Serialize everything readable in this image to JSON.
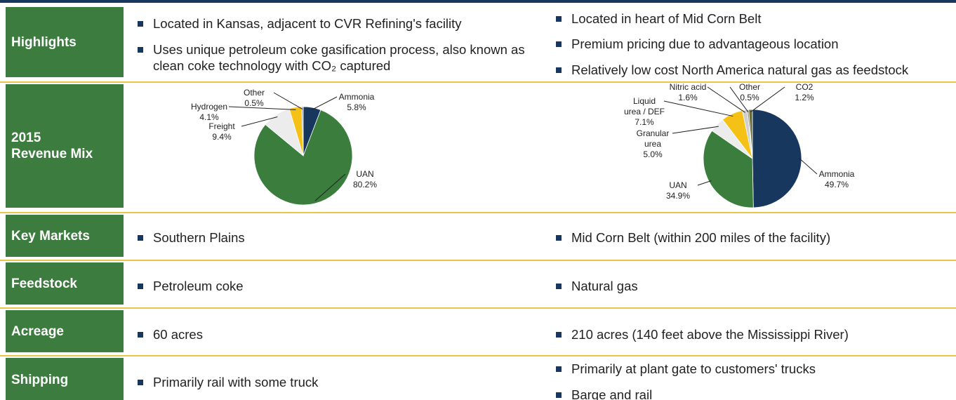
{
  "rows": [
    {
      "label": "Highlights",
      "left": [
        "Located in Kansas, adjacent to CVR Refining's facility",
        "Uses unique petroleum coke gasification process, also known as clean coke technology with CO₂ captured"
      ],
      "right": [
        "Located in heart of Mid Corn Belt",
        "Premium pricing due to advantageous location",
        "Relatively low cost North America natural gas as feedstock"
      ]
    },
    {
      "label": "2015\nRevenue Mix",
      "charts": [
        {
          "type": "pie",
          "categories": [
            "Ammonia",
            "UAN",
            "Freight",
            "Hydrogen",
            "Other"
          ],
          "values": [
            5.8,
            80.2,
            9.4,
            4.1,
            0.5
          ],
          "value_labels": [
            "5.8%",
            "80.2%",
            "9.4%",
            "4.1%",
            "0.5%"
          ],
          "colors": [
            "#17375e",
            "#3a7d3c",
            "#ececec",
            "#f5c116",
            "#9c9c9c"
          ]
        },
        {
          "type": "pie",
          "categories": [
            "Ammonia",
            "UAN",
            "Granular\nurea",
            "Liquid\nurea / DEF",
            "Nitric acid",
            "Other",
            "CO2"
          ],
          "values": [
            49.7,
            34.9,
            5.0,
            7.1,
            1.6,
            0.5,
            1.2
          ],
          "value_labels": [
            "49.7%",
            "34.9%",
            "5.0%",
            "7.1%",
            "1.6%",
            "0.5%",
            "1.2%"
          ],
          "colors": [
            "#17375e",
            "#3a7d3c",
            "#ececec",
            "#f5c116",
            "#cfcfcf",
            "#8c8c6c",
            "#6b6b3a"
          ]
        }
      ]
    },
    {
      "label": "Key Markets",
      "left": [
        "Southern Plains"
      ],
      "right": [
        "Mid Corn Belt (within 200 miles of the facility)"
      ]
    },
    {
      "label": "Feedstock",
      "left": [
        "Petroleum coke"
      ],
      "right": [
        "Natural gas"
      ]
    },
    {
      "label": "Acreage",
      "left": [
        "60 acres"
      ],
      "right": [
        "210 acres (140 feet above the Mississippi River)"
      ]
    },
    {
      "label": "Shipping",
      "left": [
        "Primarily rail with some truck"
      ],
      "right": [
        "Primarily at plant gate to customers' trucks",
        "Barge and rail"
      ]
    }
  ]
}
